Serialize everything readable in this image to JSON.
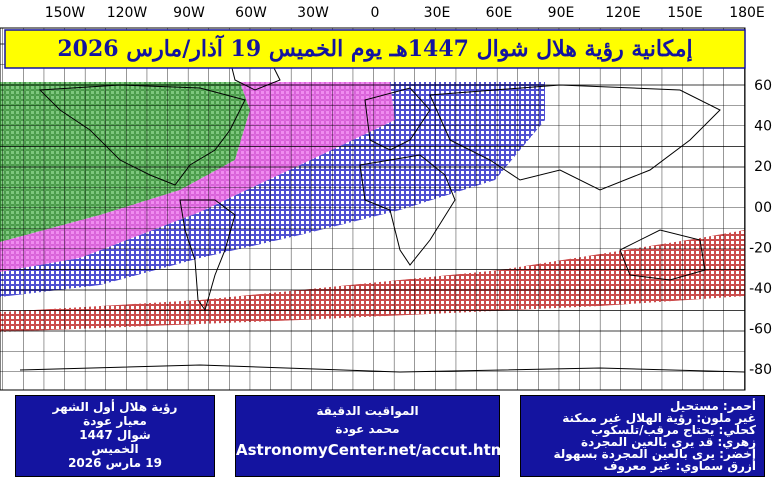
{
  "title": "إمكانية رؤية هلال شوال 1447هـ يوم الخميس 19 آذار/مارس 2026",
  "lon_labels": [
    "150W",
    "120W",
    "90W",
    "60W",
    "30W",
    "0",
    "30E",
    "60E",
    "90E",
    "120E",
    "150E",
    "180E"
  ],
  "lat_labels": [
    "60",
    "40",
    "20",
    "00",
    "-20",
    "-40",
    "-60",
    "-80"
  ],
  "left_box": [
    "رؤية هلال أول الشهر",
    "معيار عودة",
    "شوال 1447",
    "الخميس",
    "19 مارس 2026"
  ],
  "middle_box": [
    "المواقيت الدقيقة",
    "محمد عودة",
    "AstronomyCenter.net/accut.html"
  ],
  "legend": [
    "أحمر: مستحيل",
    "غير ملون: رؤية الهلال غير ممكنة",
    "كحلي: يحتاج مرقب/تلسكوب",
    "زهري: قد يرى بالعين المجردة",
    "أخضر: يرى بالعين المجردة بسهولة",
    "أزرق سماوي: غير معروف"
  ]
}
